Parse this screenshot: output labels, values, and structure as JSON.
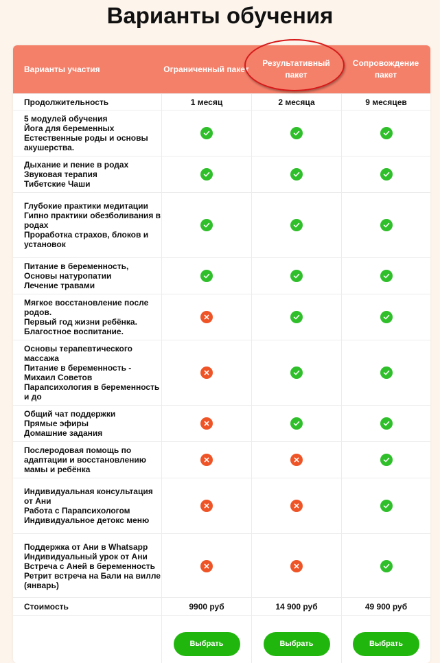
{
  "title": "Варианты обучения",
  "header": {
    "first": "Варианты участия",
    "packages": [
      "Ограниченный пакет",
      "Результативный пакет",
      "Сопровождение пакет"
    ]
  },
  "duration": {
    "label": "Продолжительность",
    "values": [
      "1 месяц",
      "2 месяца",
      "9 месяцев"
    ]
  },
  "features": [
    {
      "label": "5 модулей обучения\nЙога для беременных\nЕстественные роды и основы акушерства.",
      "marks": [
        "yes",
        "yes",
        "yes"
      ]
    },
    {
      "label": "Дыхание и пение в родах\nЗвуковая терапия\nТибетские Чаши",
      "marks": [
        "yes",
        "yes",
        "yes"
      ]
    },
    {
      "label": "Глубокие практики медитации\nГипно практики обезболивания в родах\nПроработка страхов, блоков и установок",
      "marks": [
        "yes",
        "yes",
        "yes"
      ]
    },
    {
      "label": "Питание в беременность,\nОсновы натуропатии\nЛечение травами",
      "marks": [
        "yes",
        "yes",
        "yes"
      ]
    },
    {
      "label": "Мягкое восстановление после родов.\nПервый год жизни ребёнка.\nБлагостное воспитание.",
      "marks": [
        "no",
        "yes",
        "yes"
      ]
    },
    {
      "label": "Основы терапевтического массажа\nПитание в беременность - Михаил Советов\nПарапсихология в беременность и до",
      "marks": [
        "no",
        "yes",
        "yes"
      ]
    },
    {
      "label": "Общий чат поддержки\nПрямые эфиры\nДомашние задания",
      "marks": [
        "no",
        "yes",
        "yes"
      ]
    },
    {
      "label": "Послеродовая помощь по адаптации и восстановлению мамы и ребёнка",
      "marks": [
        "no",
        "no",
        "yes"
      ]
    },
    {
      "label": "Индивидуальная консультация от Ани\nРабота с Парапсихологом\nИндивидуальное детокс меню",
      "marks": [
        "no",
        "no",
        "yes"
      ]
    },
    {
      "label": "Поддержка от Ани в Whatsapp\nИндивидуальный урок от Ани\nВстреча с Аней в беременность\nРетрит встреча на Бали на вилле (январь)",
      "marks": [
        "no",
        "no",
        "yes"
      ]
    }
  ],
  "price": {
    "label": "Стоимость",
    "values": [
      "9900 руб",
      "14 900 руб",
      "49 900 руб"
    ]
  },
  "choose_label": "Выбрать",
  "icons": {
    "yes": "check-circle-icon",
    "no": "cross-circle-icon"
  },
  "colors": {
    "header_bg": "#f4806a",
    "check": "#2fbf2a",
    "cross": "#ef5427",
    "button": "#21b60d",
    "highlight": "#d61a1a",
    "page_bg": "#fdf5ec"
  }
}
